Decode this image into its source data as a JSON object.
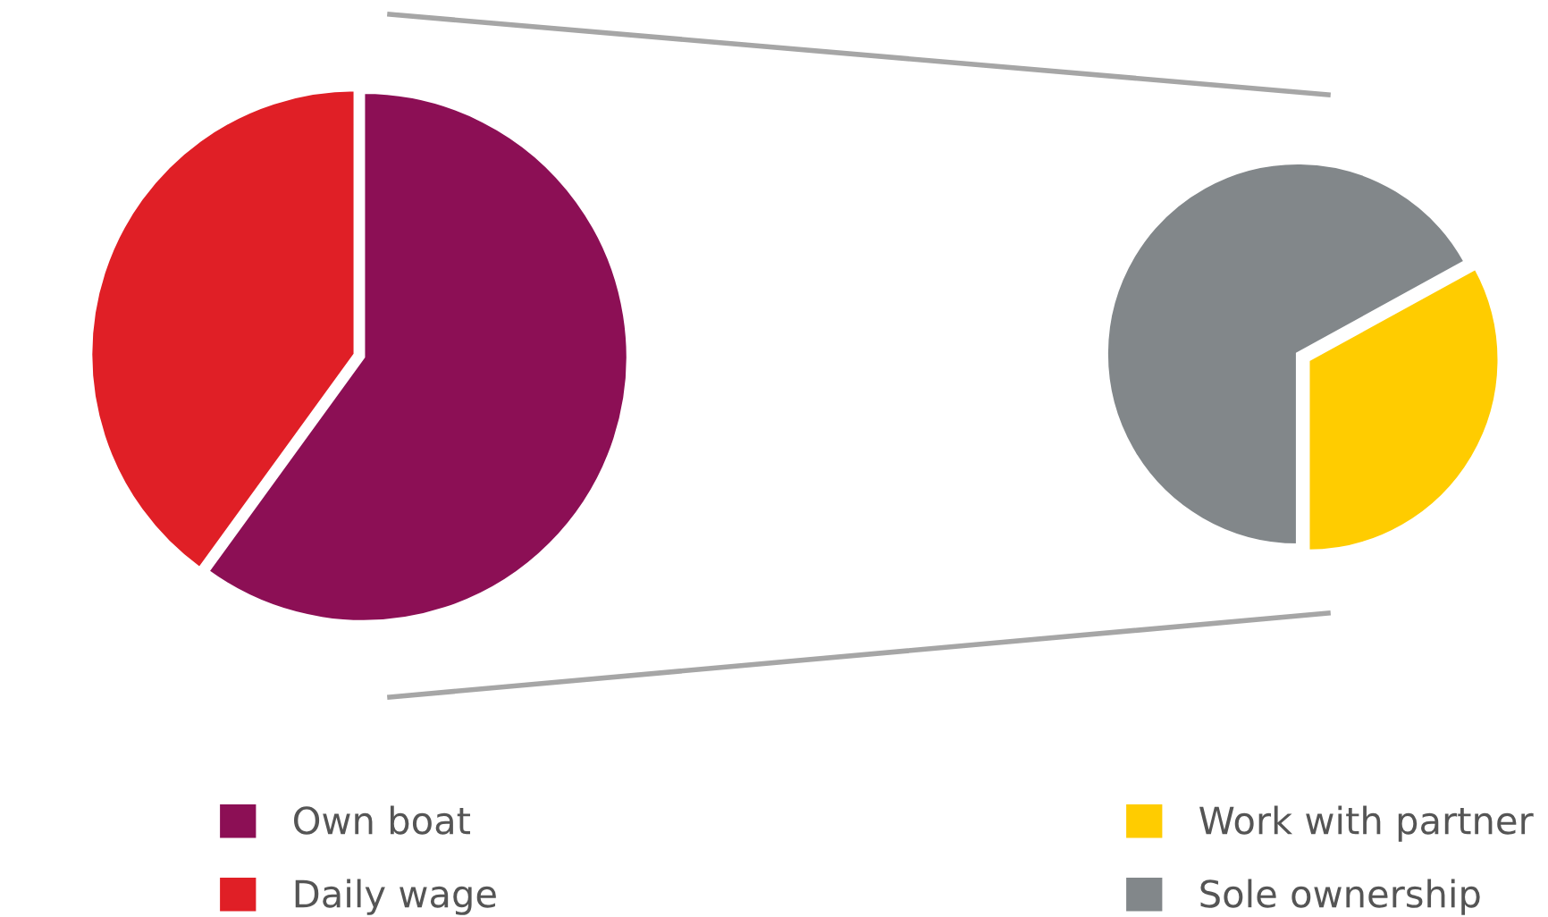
{
  "chart_data": [
    {
      "type": "pie",
      "categories": [
        "Own boat",
        "Daily wage"
      ],
      "values": [
        60,
        40
      ],
      "colors": [
        "#8c0f55",
        "#e01f26"
      ],
      "legend": "bottom"
    },
    {
      "type": "pie",
      "categories": [
        "Work with partner",
        "Sole ownership"
      ],
      "values": [
        33,
        67
      ],
      "colors": [
        "#ffcc00",
        "#82878a"
      ],
      "legend": "bottom"
    }
  ]
}
